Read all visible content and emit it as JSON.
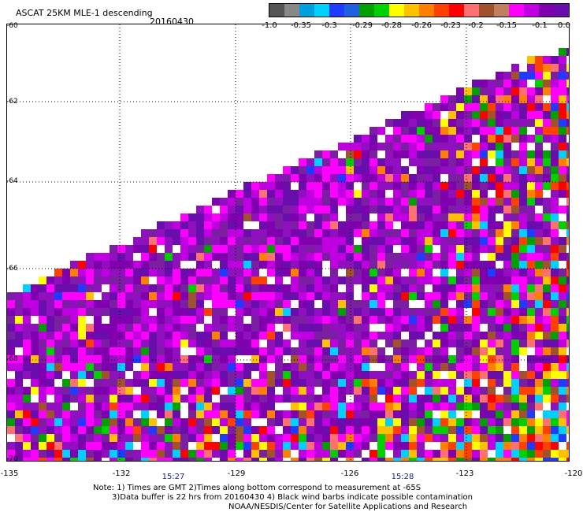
{
  "title": "ASCAT 25KM MLE-1 descending",
  "date": "20160430",
  "colorbar": {
    "colors": [
      "#555555",
      "#888888",
      "#00a0e0",
      "#00d0ff",
      "#1e3cff",
      "#2060e0",
      "#00a000",
      "#00d000",
      "#ffff00",
      "#ffc000",
      "#ff8000",
      "#ff4000",
      "#ff0000",
      "#ff7070",
      "#a0522d",
      "#c08060",
      "#ff00ff",
      "#c000e0",
      "#8000b0",
      "#6a0dad"
    ],
    "labels": [
      "-1.0",
      "-0.35",
      "-0.3",
      "-0.29",
      "-0.28",
      "-0.26",
      "-0.23",
      "-0.2",
      "-0.15",
      "-0.1",
      "0.0"
    ]
  },
  "axes": {
    "lat_labels": [
      "-60",
      "-62",
      "-64",
      "-66",
      "-68",
      "-70"
    ],
    "lon_labels": [
      "-135",
      "-132",
      "-129",
      "-126",
      "-123",
      "-120"
    ],
    "times": [
      "15:27",
      "15:28"
    ]
  },
  "notes": [
    "Note: 1) Times are GMT 2)Times along bottom correspond to measurement at -65S",
    "3)Data buffer is 22 hrs from 20160430 4) Black wind barbs indicate possible contamination",
    "NOAA/NESDIS/Center for Satellite Applications and Research"
  ]
}
